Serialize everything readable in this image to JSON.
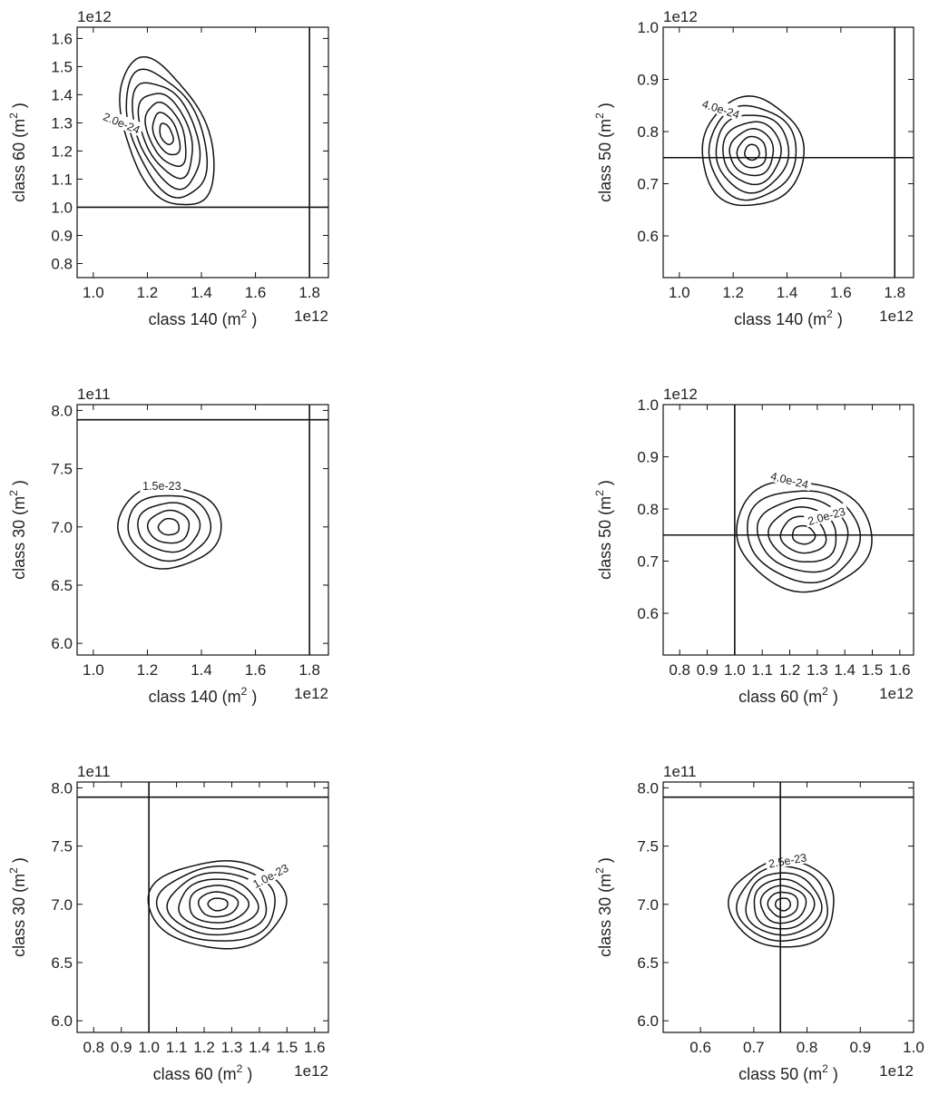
{
  "chart_data": [
    {
      "type": "contour",
      "xlabel": "class 140 (m",
      "ylabel": "class 60 (m",
      "label_unit_sup": "2",
      "x_multiplier": "1e12",
      "y_multiplier": "1e12",
      "xlim": [
        0.94,
        1.87
      ],
      "ylim": [
        0.75,
        1.64
      ],
      "xticks": [
        1.0,
        1.2,
        1.4,
        1.6,
        1.8
      ],
      "xtick_labels": [
        "1.0",
        "1.2",
        "1.4",
        "1.6",
        "1.8"
      ],
      "yticks": [
        0.8,
        0.9,
        1.0,
        1.1,
        1.2,
        1.3,
        1.4,
        1.5,
        1.6
      ],
      "ytick_labels": [
        "0.8",
        "0.9",
        "1.0",
        "1.1",
        "1.2",
        "1.3",
        "1.4",
        "1.5",
        "1.6"
      ],
      "reference_lines": {
        "vertical": 1.8,
        "horizontal": 1.0
      },
      "center": [
        1.27,
        1.26
      ],
      "levels": 7,
      "contour_label": "2.0e-24"
    },
    {
      "type": "contour",
      "xlabel": "class 140 (m",
      "ylabel": "class 50 (m",
      "label_unit_sup": "2",
      "x_multiplier": "1e12",
      "y_multiplier": "1e12",
      "xlim": [
        0.94,
        1.87
      ],
      "ylim": [
        0.52,
        1.0
      ],
      "xticks": [
        1.0,
        1.2,
        1.4,
        1.6,
        1.8
      ],
      "xtick_labels": [
        "1.0",
        "1.2",
        "1.4",
        "1.6",
        "1.8"
      ],
      "yticks": [
        0.6,
        0.7,
        0.8,
        0.9,
        1.0
      ],
      "ytick_labels": [
        "0.6",
        "0.7",
        "0.8",
        "0.9",
        "1.0"
      ],
      "reference_lines": {
        "vertical": 1.8,
        "horizontal": 0.75
      },
      "center": [
        1.27,
        0.76
      ],
      "levels": 7,
      "contour_label": "4.0e-24"
    },
    {
      "type": "contour",
      "xlabel": "class 140 (m",
      "ylabel": "class 30 (m",
      "label_unit_sup": "2",
      "x_multiplier": "1e12",
      "y_multiplier": "1e11",
      "xlim": [
        0.94,
        1.87
      ],
      "ylim": [
        5.9,
        8.05
      ],
      "xticks": [
        1.0,
        1.2,
        1.4,
        1.6,
        1.8
      ],
      "xtick_labels": [
        "1.0",
        "1.2",
        "1.4",
        "1.6",
        "1.8"
      ],
      "yticks": [
        6.0,
        6.5,
        7.0,
        7.5,
        8.0
      ],
      "ytick_labels": [
        "6.0",
        "6.5",
        "7.0",
        "7.5",
        "8.0"
      ],
      "reference_lines": {
        "vertical": 1.8,
        "horizontal": 7.92
      },
      "center": [
        1.28,
        7.0
      ],
      "levels": 5,
      "contour_label": "1.5e-23"
    },
    {
      "type": "contour",
      "xlabel": "class 60 (m",
      "ylabel": "class 50 (m",
      "label_unit_sup": "2",
      "x_multiplier": "1e12",
      "y_multiplier": "1e12",
      "xlim": [
        0.74,
        1.65
      ],
      "ylim": [
        0.52,
        1.0
      ],
      "xticks": [
        0.8,
        0.9,
        1.0,
        1.1,
        1.2,
        1.3,
        1.4,
        1.5,
        1.6
      ],
      "xtick_labels": [
        "0.8",
        "0.9",
        "1.0",
        "1.1",
        "1.2",
        "1.3",
        "1.4",
        "1.5",
        "1.6"
      ],
      "yticks": [
        0.6,
        0.7,
        0.8,
        0.9,
        1.0
      ],
      "ytick_labels": [
        "0.6",
        "0.7",
        "0.8",
        "0.9",
        "1.0"
      ],
      "reference_lines": {
        "vertical": 1.0,
        "horizontal": 0.75
      },
      "center": [
        1.25,
        0.75
      ],
      "levels": 6,
      "contour_label": "2.0e-23",
      "contour_label_2": "4.0e-24"
    },
    {
      "type": "contour",
      "xlabel": "class 60 (m",
      "ylabel": "class 30 (m",
      "label_unit_sup": "2",
      "x_multiplier": "1e12",
      "y_multiplier": "1e11",
      "xlim": [
        0.74,
        1.65
      ],
      "ylim": [
        5.9,
        8.05
      ],
      "xticks": [
        0.8,
        0.9,
        1.0,
        1.1,
        1.2,
        1.3,
        1.4,
        1.5,
        1.6
      ],
      "xtick_labels": [
        "0.8",
        "0.9",
        "1.0",
        "1.1",
        "1.2",
        "1.3",
        "1.4",
        "1.5",
        "1.6"
      ],
      "yticks": [
        6.0,
        6.5,
        7.0,
        7.5,
        8.0
      ],
      "ytick_labels": [
        "6.0",
        "6.5",
        "7.0",
        "7.5",
        "8.0"
      ],
      "reference_lines": {
        "vertical": 1.0,
        "horizontal": 7.92
      },
      "center": [
        1.25,
        7.0
      ],
      "levels": 7,
      "contour_label": "1.0e-23"
    },
    {
      "type": "contour",
      "xlabel": "class 50 (m",
      "ylabel": "class 30 (m",
      "label_unit_sup": "2",
      "x_multiplier": "1e12",
      "y_multiplier": "1e11",
      "xlim": [
        0.53,
        1.0
      ],
      "ylim": [
        5.9,
        8.05
      ],
      "xticks": [
        0.6,
        0.7,
        0.8,
        0.9,
        1.0
      ],
      "xtick_labels": [
        "0.6",
        "0.7",
        "0.8",
        "0.9",
        "1.0"
      ],
      "yticks": [
        6.0,
        6.5,
        7.0,
        7.5,
        8.0
      ],
      "ytick_labels": [
        "6.0",
        "6.5",
        "7.0",
        "7.5",
        "8.0"
      ],
      "reference_lines": {
        "vertical": 0.75,
        "horizontal": 7.92
      },
      "center": [
        0.755,
        7.0
      ],
      "levels": 7,
      "contour_label": "2.5e-23"
    }
  ]
}
